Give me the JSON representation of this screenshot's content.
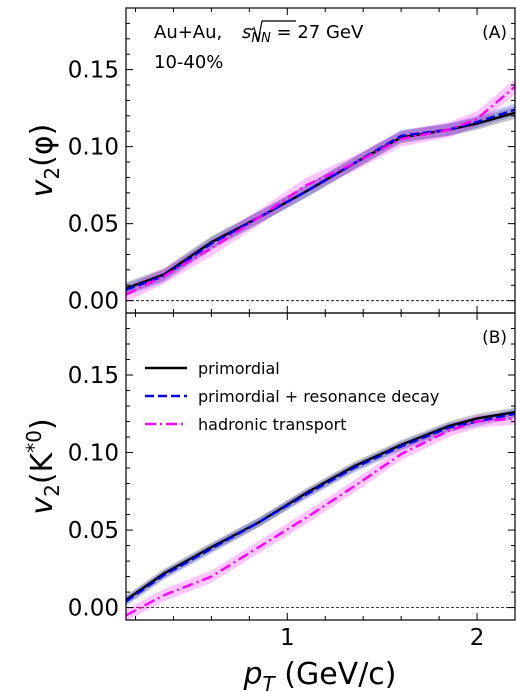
{
  "chart_data": [
    {
      "type": "line",
      "panel_label": "(A)",
      "ylabel_main": "v",
      "ylabel_sub": "2",
      "ylabel_arg": "(φ)",
      "annotation_line1_prefix": "Au+Au, ",
      "annotation_line1_sqrt_s": "s",
      "annotation_line1_sqrt_sub": "NN",
      "annotation_line1_suffix": " = 27 GeV",
      "annotation_line2": "10-40%",
      "xlim": [
        0.15,
        2.2
      ],
      "ylim": [
        -0.008,
        0.19
      ],
      "yticks": [
        0.0,
        0.05,
        0.1,
        0.15
      ],
      "ytick_labels": [
        "0.00",
        "0.05",
        "0.10",
        "0.15"
      ],
      "xticks": [
        1,
        2
      ],
      "grid": false,
      "zero_line": true,
      "series": [
        {
          "name": "primordial",
          "color": "#000000",
          "dash": "solid",
          "x": [
            0.15,
            0.35,
            0.6,
            0.85,
            1.1,
            1.35,
            1.6,
            1.85,
            2.0,
            2.2
          ],
          "y": [
            0.008,
            0.017,
            0.038,
            0.054,
            0.071,
            0.089,
            0.106,
            0.111,
            0.115,
            0.122
          ],
          "band": 0.004
        },
        {
          "name": "primordial + resonance decay",
          "color": "#0000e6",
          "dash": "dashed",
          "x": [
            0.15,
            0.35,
            0.6,
            0.85,
            1.1,
            1.35,
            1.6,
            1.85,
            2.0,
            2.2
          ],
          "y": [
            0.007,
            0.016,
            0.037,
            0.054,
            0.071,
            0.089,
            0.107,
            0.111,
            0.116,
            0.124
          ],
          "band": 0.004
        },
        {
          "name": "hadronic transport",
          "color": "#ff00ff",
          "dash": "dashdot",
          "x": [
            0.15,
            0.35,
            0.6,
            0.85,
            1.1,
            1.35,
            1.6,
            1.85,
            2.0,
            2.2
          ],
          "y": [
            0.004,
            0.016,
            0.034,
            0.054,
            0.075,
            0.089,
            0.105,
            0.111,
            0.118,
            0.139
          ],
          "band": 0.005
        }
      ]
    },
    {
      "type": "line",
      "panel_label": "(B)",
      "ylabel_main": "v",
      "ylabel_sub": "2",
      "ylabel_arg": "(K",
      "ylabel_sup": "*0",
      "ylabel_close": ")",
      "xlabel_main": "p",
      "xlabel_sub": "T",
      "xlabel_unit": " (GeV/c)",
      "xlim": [
        0.15,
        2.2
      ],
      "ylim": [
        -0.008,
        0.19
      ],
      "yticks": [
        0.0,
        0.05,
        0.1,
        0.15
      ],
      "ytick_labels": [
        "0.00",
        "0.05",
        "0.10",
        "0.15"
      ],
      "xticks": [
        1,
        2
      ],
      "xtick_labels": [
        "1",
        "2"
      ],
      "grid": false,
      "zero_line": true,
      "legend_position": "upper-left",
      "series": [
        {
          "name": "primordial",
          "color": "#000000",
          "dash": "solid",
          "x": [
            0.15,
            0.35,
            0.6,
            0.85,
            1.1,
            1.35,
            1.6,
            1.85,
            2.0,
            2.2
          ],
          "y": [
            0.005,
            0.022,
            0.039,
            0.055,
            0.074,
            0.091,
            0.105,
            0.117,
            0.122,
            0.126
          ],
          "band": 0.003
        },
        {
          "name": "primordial + resonance decay",
          "color": "#0000e6",
          "dash": "dashed",
          "x": [
            0.15,
            0.35,
            0.6,
            0.85,
            1.1,
            1.35,
            1.6,
            1.85,
            2.0,
            2.2
          ],
          "y": [
            0.004,
            0.021,
            0.038,
            0.055,
            0.073,
            0.09,
            0.104,
            0.116,
            0.12,
            0.125
          ],
          "band": 0.003
        },
        {
          "name": "hadronic transport",
          "color": "#ff00ff",
          "dash": "dashdot",
          "x": [
            0.15,
            0.35,
            0.6,
            0.85,
            1.1,
            1.35,
            1.6,
            1.85,
            2.0,
            2.2
          ],
          "y": [
            -0.005,
            0.008,
            0.02,
            0.039,
            0.058,
            0.078,
            0.099,
            0.114,
            0.12,
            0.122
          ],
          "band": 0.004
        }
      ]
    }
  ]
}
